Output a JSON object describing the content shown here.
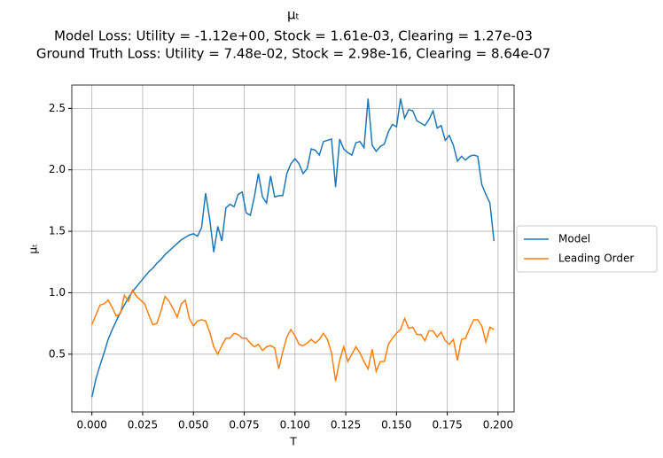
{
  "chart_data": {
    "type": "line",
    "title": "μₜ",
    "subtitle": [
      "Model Loss: Utility = -1.12e+00, Stock = 1.61e-03, Clearing = 1.27e-03",
      "Ground Truth Loss: Utility = 7.48e-02, Stock = 2.98e-16, Clearing = 8.64e-07"
    ],
    "x_label": "T",
    "y_label": "μₜ",
    "x": [
      0,
      0.002,
      0.004,
      0.006,
      0.008,
      0.01,
      0.012,
      0.014,
      0.016,
      0.018,
      0.02,
      0.022,
      0.024,
      0.026,
      0.028,
      0.03,
      0.032,
      0.034,
      0.036,
      0.038,
      0.04,
      0.042,
      0.044,
      0.046,
      0.048,
      0.05,
      0.052,
      0.054,
      0.056,
      0.058,
      0.06,
      0.062,
      0.064,
      0.066,
      0.068,
      0.07,
      0.072,
      0.074,
      0.076,
      0.078,
      0.08,
      0.082,
      0.084,
      0.086,
      0.088,
      0.09,
      0.092,
      0.094,
      0.096,
      0.098,
      0.1,
      0.102,
      0.104,
      0.106,
      0.108,
      0.11,
      0.112,
      0.114,
      0.116,
      0.118,
      0.12,
      0.122,
      0.124,
      0.126,
      0.128,
      0.13,
      0.132,
      0.134,
      0.136,
      0.138,
      0.14,
      0.142,
      0.144,
      0.146,
      0.148,
      0.15,
      0.152,
      0.154,
      0.156,
      0.158,
      0.16,
      0.162,
      0.164,
      0.166,
      0.168,
      0.17,
      0.172,
      0.174,
      0.176,
      0.178,
      0.18,
      0.182,
      0.184,
      0.186,
      0.188,
      0.19,
      0.192,
      0.194,
      0.196,
      0.198
    ],
    "series": [
      {
        "name": "Model",
        "color": "#1f77b4",
        "values": [
          0.15,
          0.3,
          0.41,
          0.51,
          0.62,
          0.7,
          0.77,
          0.84,
          0.9,
          0.96,
          1.01,
          1.05,
          1.09,
          1.13,
          1.17,
          1.2,
          1.24,
          1.27,
          1.31,
          1.34,
          1.37,
          1.4,
          1.43,
          1.45,
          1.47,
          1.48,
          1.46,
          1.53,
          1.81,
          1.6,
          1.33,
          1.54,
          1.42,
          1.69,
          1.72,
          1.7,
          1.8,
          1.82,
          1.65,
          1.63,
          1.78,
          1.97,
          1.78,
          1.73,
          1.95,
          1.78,
          1.79,
          1.79,
          1.97,
          2.05,
          2.09,
          2.05,
          1.97,
          2.01,
          2.17,
          2.16,
          2.12,
          2.23,
          2.24,
          2.25,
          1.86,
          2.25,
          2.17,
          2.14,
          2.12,
          2.22,
          2.23,
          2.18,
          2.58,
          2.2,
          2.15,
          2.19,
          2.21,
          2.31,
          2.37,
          2.35,
          2.58,
          2.42,
          2.49,
          2.48,
          2.4,
          2.38,
          2.36,
          2.41,
          2.48,
          2.34,
          2.36,
          2.24,
          2.28,
          2.2,
          2.07,
          2.11,
          2.08,
          2.11,
          2.12,
          2.11,
          1.88,
          1.8,
          1.73,
          1.42
        ]
      },
      {
        "name": "Leading Order",
        "color": "#ff7f0e",
        "values": [
          0.74,
          0.82,
          0.9,
          0.91,
          0.94,
          0.88,
          0.81,
          0.83,
          0.98,
          0.93,
          1.02,
          0.97,
          0.94,
          0.91,
          0.82,
          0.74,
          0.75,
          0.85,
          0.97,
          0.93,
          0.87,
          0.8,
          0.91,
          0.94,
          0.79,
          0.73,
          0.77,
          0.78,
          0.77,
          0.68,
          0.56,
          0.5,
          0.57,
          0.63,
          0.63,
          0.67,
          0.66,
          0.63,
          0.63,
          0.59,
          0.56,
          0.58,
          0.53,
          0.56,
          0.57,
          0.55,
          0.38,
          0.52,
          0.64,
          0.7,
          0.65,
          0.58,
          0.57,
          0.59,
          0.62,
          0.59,
          0.62,
          0.67,
          0.62,
          0.51,
          0.28,
          0.45,
          0.56,
          0.44,
          0.5,
          0.56,
          0.51,
          0.44,
          0.38,
          0.54,
          0.36,
          0.44,
          0.44,
          0.58,
          0.63,
          0.67,
          0.7,
          0.79,
          0.71,
          0.72,
          0.66,
          0.66,
          0.61,
          0.69,
          0.69,
          0.64,
          0.68,
          0.61,
          0.58,
          0.62,
          0.45,
          0.62,
          0.63,
          0.71,
          0.78,
          0.78,
          0.73,
          0.6,
          0.72,
          0.7
        ]
      }
    ],
    "xlim": [
      -0.0099,
      0.2079
    ],
    "ylim": [
      0.03,
      2.69
    ],
    "xticks": [
      {
        "value": 0,
        "label": "0.000"
      },
      {
        "value": 0.025,
        "label": "0.025"
      },
      {
        "value": 0.05,
        "label": "0.050"
      },
      {
        "value": 0.075,
        "label": "0.075"
      },
      {
        "value": 0.1,
        "label": "0.100"
      },
      {
        "value": 0.125,
        "label": "0.125"
      },
      {
        "value": 0.15,
        "label": "0.150"
      },
      {
        "value": 0.175,
        "label": "0.175"
      },
      {
        "value": 0.2,
        "label": "0.200"
      }
    ],
    "yticks": [
      0.5,
      {
        "value": 1,
        "label": "1.0"
      },
      1.5,
      {
        "value": 2,
        "label": "2.0"
      },
      2.5
    ],
    "grid": true,
    "legend": "right"
  }
}
